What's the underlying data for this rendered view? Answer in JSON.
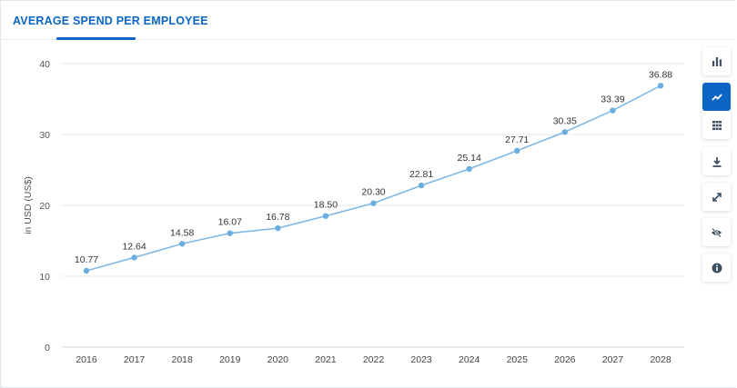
{
  "header": {
    "title": "AVERAGE SPEND PER EMPLOYEE"
  },
  "toolbar": {
    "buttons": [
      {
        "icon": "bar-chart-icon",
        "active": false
      },
      {
        "icon": "line-chart-icon",
        "active": true
      },
      {
        "icon": "table-icon",
        "active": false
      },
      {
        "icon": "download-icon",
        "active": false
      },
      {
        "icon": "fullscreen-icon",
        "active": false
      },
      {
        "icon": "hide-icon",
        "active": false
      },
      {
        "icon": "info-icon",
        "active": false
      }
    ]
  },
  "colors": {
    "accent": "#0b66c3",
    "line": "#7fb8e6",
    "point": "#6aaee0"
  },
  "chart_data": {
    "type": "line",
    "title": "",
    "xlabel": "",
    "ylabel": "in USD (US$)",
    "categories": [
      "2016",
      "2017",
      "2018",
      "2019",
      "2020",
      "2021",
      "2022",
      "2023",
      "2024",
      "2025",
      "2026",
      "2027",
      "2028"
    ],
    "values": [
      10.77,
      12.64,
      14.58,
      16.07,
      16.78,
      18.5,
      20.3,
      22.81,
      25.14,
      27.71,
      30.35,
      33.39,
      36.88
    ],
    "data_labels": [
      "10.77",
      "12.64",
      "14.58",
      "16.07",
      "16.78",
      "18.50",
      "20.30",
      "22.81",
      "25.14",
      "27.71",
      "30.35",
      "33.39",
      "36.88"
    ],
    "yticks": [
      "0",
      "10",
      "20",
      "30",
      "40"
    ],
    "ylim": [
      0,
      40
    ],
    "grid": true,
    "legend": "none"
  }
}
